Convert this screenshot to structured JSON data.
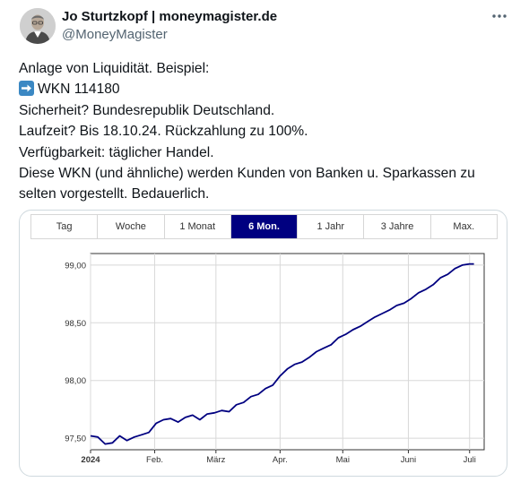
{
  "author": {
    "name": "Jo Sturtzkopf | moneymagister.de",
    "handle": "@MoneyMagister"
  },
  "more_icon": "more-horizontal-icon",
  "tweet": {
    "lines": [
      "Anlage von Liquidität. Beispiel:",
      "WKN 114180",
      "Sicherheit? Bundesrepublik Deutschland.",
      "Laufzeit? Bis 18.10.24. Rückzahlung zu 100%.",
      "Verfügbarkeit: täglicher Handel.",
      "Diese WKN (und ähnliche) werden Kunden von Banken u. Sparkassen zu",
      "selten vorgestellt. Bedauerlich."
    ],
    "arrow_icon": "right-arrow-emoji-icon"
  },
  "chart_tabs": {
    "items": [
      "Tag",
      "Woche",
      "1 Monat",
      "6 Mon.",
      "1 Jahr",
      "3 Jahre",
      "Max."
    ],
    "active": "6 Mon."
  },
  "chart_data": {
    "type": "line",
    "title": "",
    "xlabel": "",
    "ylabel": "",
    "ylim": [
      97.4,
      99.1
    ],
    "xlim": [
      0,
      27
    ],
    "grid": true,
    "line_color": "#000080",
    "y_ticks": [
      {
        "value": 97.5,
        "label": "97,50"
      },
      {
        "value": 98.0,
        "label": "98,00"
      },
      {
        "value": 98.5,
        "label": "98,50"
      },
      {
        "value": 99.0,
        "label": "99,00"
      }
    ],
    "x_ticks": [
      {
        "week": 0,
        "label": "2024",
        "bold": true
      },
      {
        "week": 4.4,
        "label": "Feb."
      },
      {
        "week": 8.6,
        "label": "März"
      },
      {
        "week": 13.0,
        "label": "Apr."
      },
      {
        "week": 17.3,
        "label": "Mai"
      },
      {
        "week": 21.8,
        "label": "Juni"
      },
      {
        "week": 26.0,
        "label": "Juli"
      }
    ],
    "series": [
      {
        "x": [
          0,
          0.5,
          1,
          1.5,
          2,
          2.5,
          3,
          3.5,
          4,
          4.5,
          5,
          5.5,
          6,
          6.5,
          7,
          7.5,
          8,
          8.5,
          9,
          9.5,
          10,
          10.5,
          11,
          11.5,
          12,
          12.5,
          13,
          13.5,
          14,
          14.5,
          15,
          15.5,
          16,
          16.5,
          17,
          17.5,
          18,
          18.5,
          19,
          19.5,
          20,
          20.5,
          21,
          21.5,
          22,
          22.5,
          23,
          23.5,
          24,
          24.5,
          25,
          25.5,
          26,
          26.3
        ],
        "values": [
          97.52,
          97.51,
          97.45,
          97.46,
          97.52,
          97.48,
          97.51,
          97.53,
          97.55,
          97.63,
          97.66,
          97.67,
          97.64,
          97.68,
          97.7,
          97.66,
          97.71,
          97.72,
          97.74,
          97.73,
          97.79,
          97.81,
          97.86,
          97.88,
          97.93,
          97.96,
          98.04,
          98.1,
          98.14,
          98.16,
          98.2,
          98.25,
          98.28,
          98.31,
          98.37,
          98.4,
          98.44,
          98.47,
          98.51,
          98.55,
          98.58,
          98.61,
          98.65,
          98.67,
          98.71,
          98.76,
          98.79,
          98.83,
          98.89,
          98.92,
          98.97,
          99.0,
          99.01,
          99.01
        ]
      }
    ]
  }
}
